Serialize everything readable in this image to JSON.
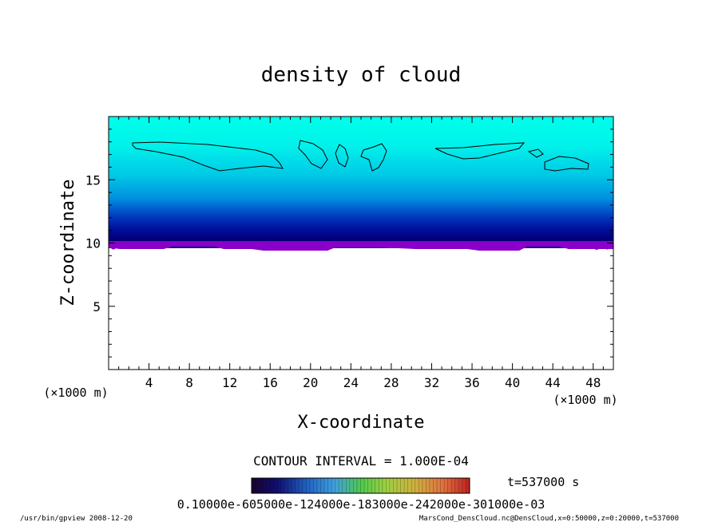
{
  "chart_data": {
    "type": "heatmap",
    "title": "density of cloud",
    "xlabel": "X-coordinate",
    "ylabel": "Z-coordinate",
    "x_unit": "(×1000 m)",
    "y_unit": "(×1000 m)",
    "xlim": [
      0,
      50
    ],
    "ylim": [
      0,
      20
    ],
    "x_ticks": [
      4,
      8,
      12,
      16,
      20,
      24,
      28,
      32,
      36,
      40,
      44,
      48
    ],
    "y_ticks": [
      5,
      10,
      15
    ],
    "contour_interval_text": "CONTOUR INTERVAL = 1.000E-04",
    "time_text": "t=537000 s",
    "colorbar_label_text": "0.10000e-605000e-124000e-183000e-242000e-301000e-03",
    "footer_left": "/usr/bin/gpview   2008-12-20",
    "footer_right": "MarsCond_DensCloud.nc@DensCloud,x=0:50000,z=0:20000,t=537000",
    "cloud_layer": {
      "bottom_z": 9.6,
      "top_z": 20,
      "dense_core_z": [
        10,
        12
      ]
    },
    "colors": {
      "top": "#00ffe8",
      "mid": "#0078e0",
      "deep": "#000080",
      "base": "#8a00c8"
    }
  }
}
